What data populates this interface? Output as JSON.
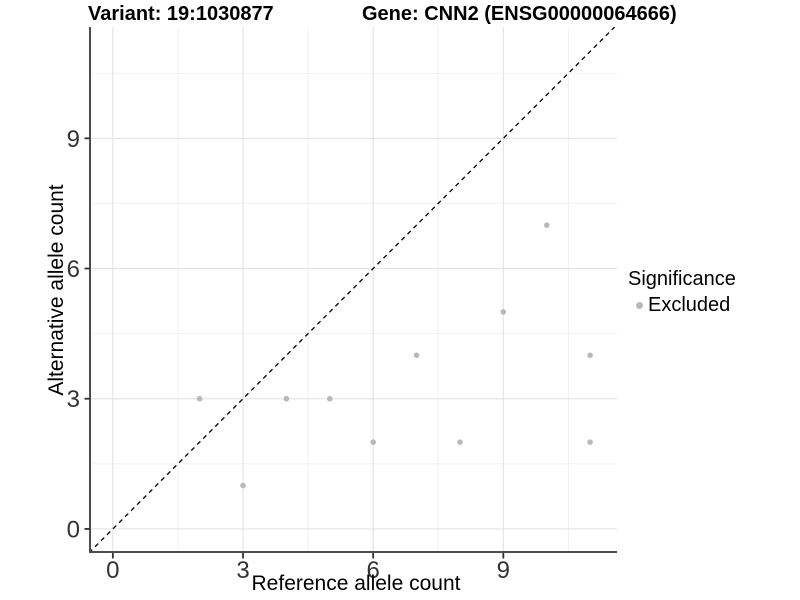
{
  "header": {
    "variant_title": "Variant: 19:1030877",
    "gene_title": "Gene: CNN2 (ENSG00000064666)"
  },
  "legend": {
    "title": "Significance",
    "items": [
      {
        "label": "Excluded",
        "color": "#b9b9b9",
        "marker": "dot-icon"
      }
    ]
  },
  "chart_data": {
    "type": "scatter",
    "xlabel": "Reference allele count",
    "ylabel": "Alternative allele count",
    "xlim": [
      -0.55,
      11.62
    ],
    "ylim": [
      -0.555,
      11.565
    ],
    "x_ticks": [
      0,
      3,
      6,
      9
    ],
    "y_ticks": [
      0,
      3,
      6,
      9
    ],
    "x_minor_ticks": [
      1.5,
      4.5,
      7.5,
      10.5
    ],
    "y_minor_ticks": [
      1.5,
      4.5,
      7.5,
      10.5
    ],
    "grid": "on",
    "legend_position": "right",
    "series": [
      {
        "name": "Excluded",
        "color": "#b9b9b9",
        "points": [
          [
            2,
            3
          ],
          [
            3,
            1
          ],
          [
            4,
            3
          ],
          [
            5,
            3
          ],
          [
            6,
            2
          ],
          [
            7,
            4
          ],
          [
            8,
            2
          ],
          [
            9,
            5
          ],
          [
            10,
            7
          ],
          [
            11,
            2
          ],
          [
            11,
            4
          ]
        ]
      }
    ],
    "reference_line": {
      "equation": "y = x",
      "style": "dashed",
      "color": "#000000"
    }
  },
  "colors": {
    "background": "#ffffff",
    "axis_line": "#4d4d4d",
    "major_grid": "#e4e4e4",
    "minor_grid": "#f1f1f1",
    "tick_label": "#333333",
    "point": "#b9b9b9"
  }
}
